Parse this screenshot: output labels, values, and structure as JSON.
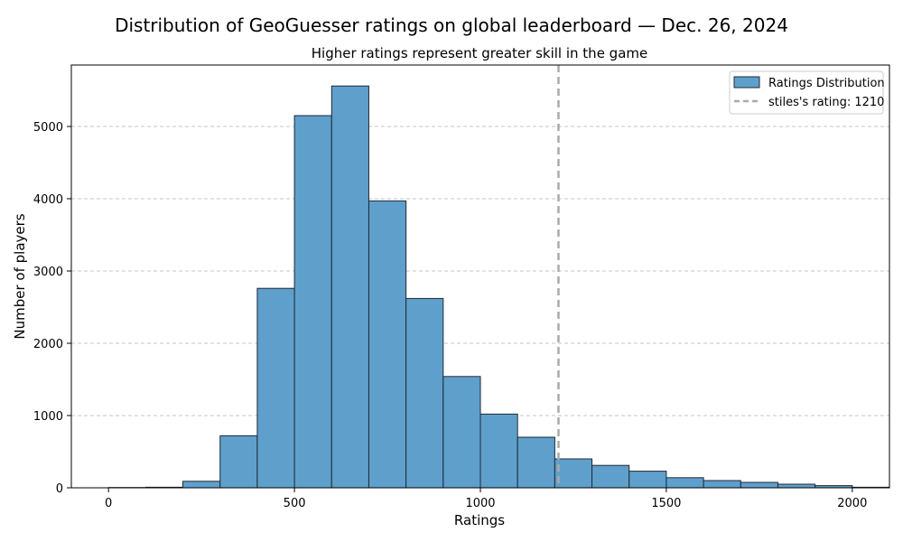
{
  "chart_data": {
    "type": "bar",
    "title": "Distribution of GeoGuesser ratings on global leaderboard — Dec. 26, 2024",
    "subtitle": "Higher ratings represent greater skill in the game",
    "xlabel": "Ratings",
    "ylabel": "Number of players",
    "xlim": [
      -100,
      2100
    ],
    "ylim": [
      0,
      5850
    ],
    "xticks": [
      0,
      500,
      1000,
      1500,
      2000
    ],
    "yticks": [
      0,
      1000,
      2000,
      3000,
      4000,
      5000
    ],
    "grid": "y-dashed",
    "bin_width": 100,
    "bin_starts": [
      0,
      100,
      200,
      300,
      400,
      500,
      600,
      700,
      800,
      900,
      1000,
      1100,
      1200,
      1300,
      1400,
      1500,
      1600,
      1700,
      1800,
      1900,
      2000
    ],
    "values": [
      4,
      8,
      90,
      720,
      2760,
      5150,
      5560,
      3970,
      2620,
      1540,
      1020,
      700,
      400,
      310,
      230,
      140,
      100,
      75,
      50,
      30,
      8
    ],
    "bar_color": "#5f9fcc",
    "bar_edge_color": "#1f2a35",
    "reference_line": {
      "x": 1210,
      "label": "stiles's rating: 1210",
      "color": "#aaaaaa",
      "style": "dashed"
    },
    "legend": {
      "placement": "top-right",
      "entries": [
        {
          "label": "Ratings Distribution",
          "kind": "bar"
        },
        {
          "label": "stiles's rating: 1210",
          "kind": "dashed-line"
        }
      ]
    }
  }
}
